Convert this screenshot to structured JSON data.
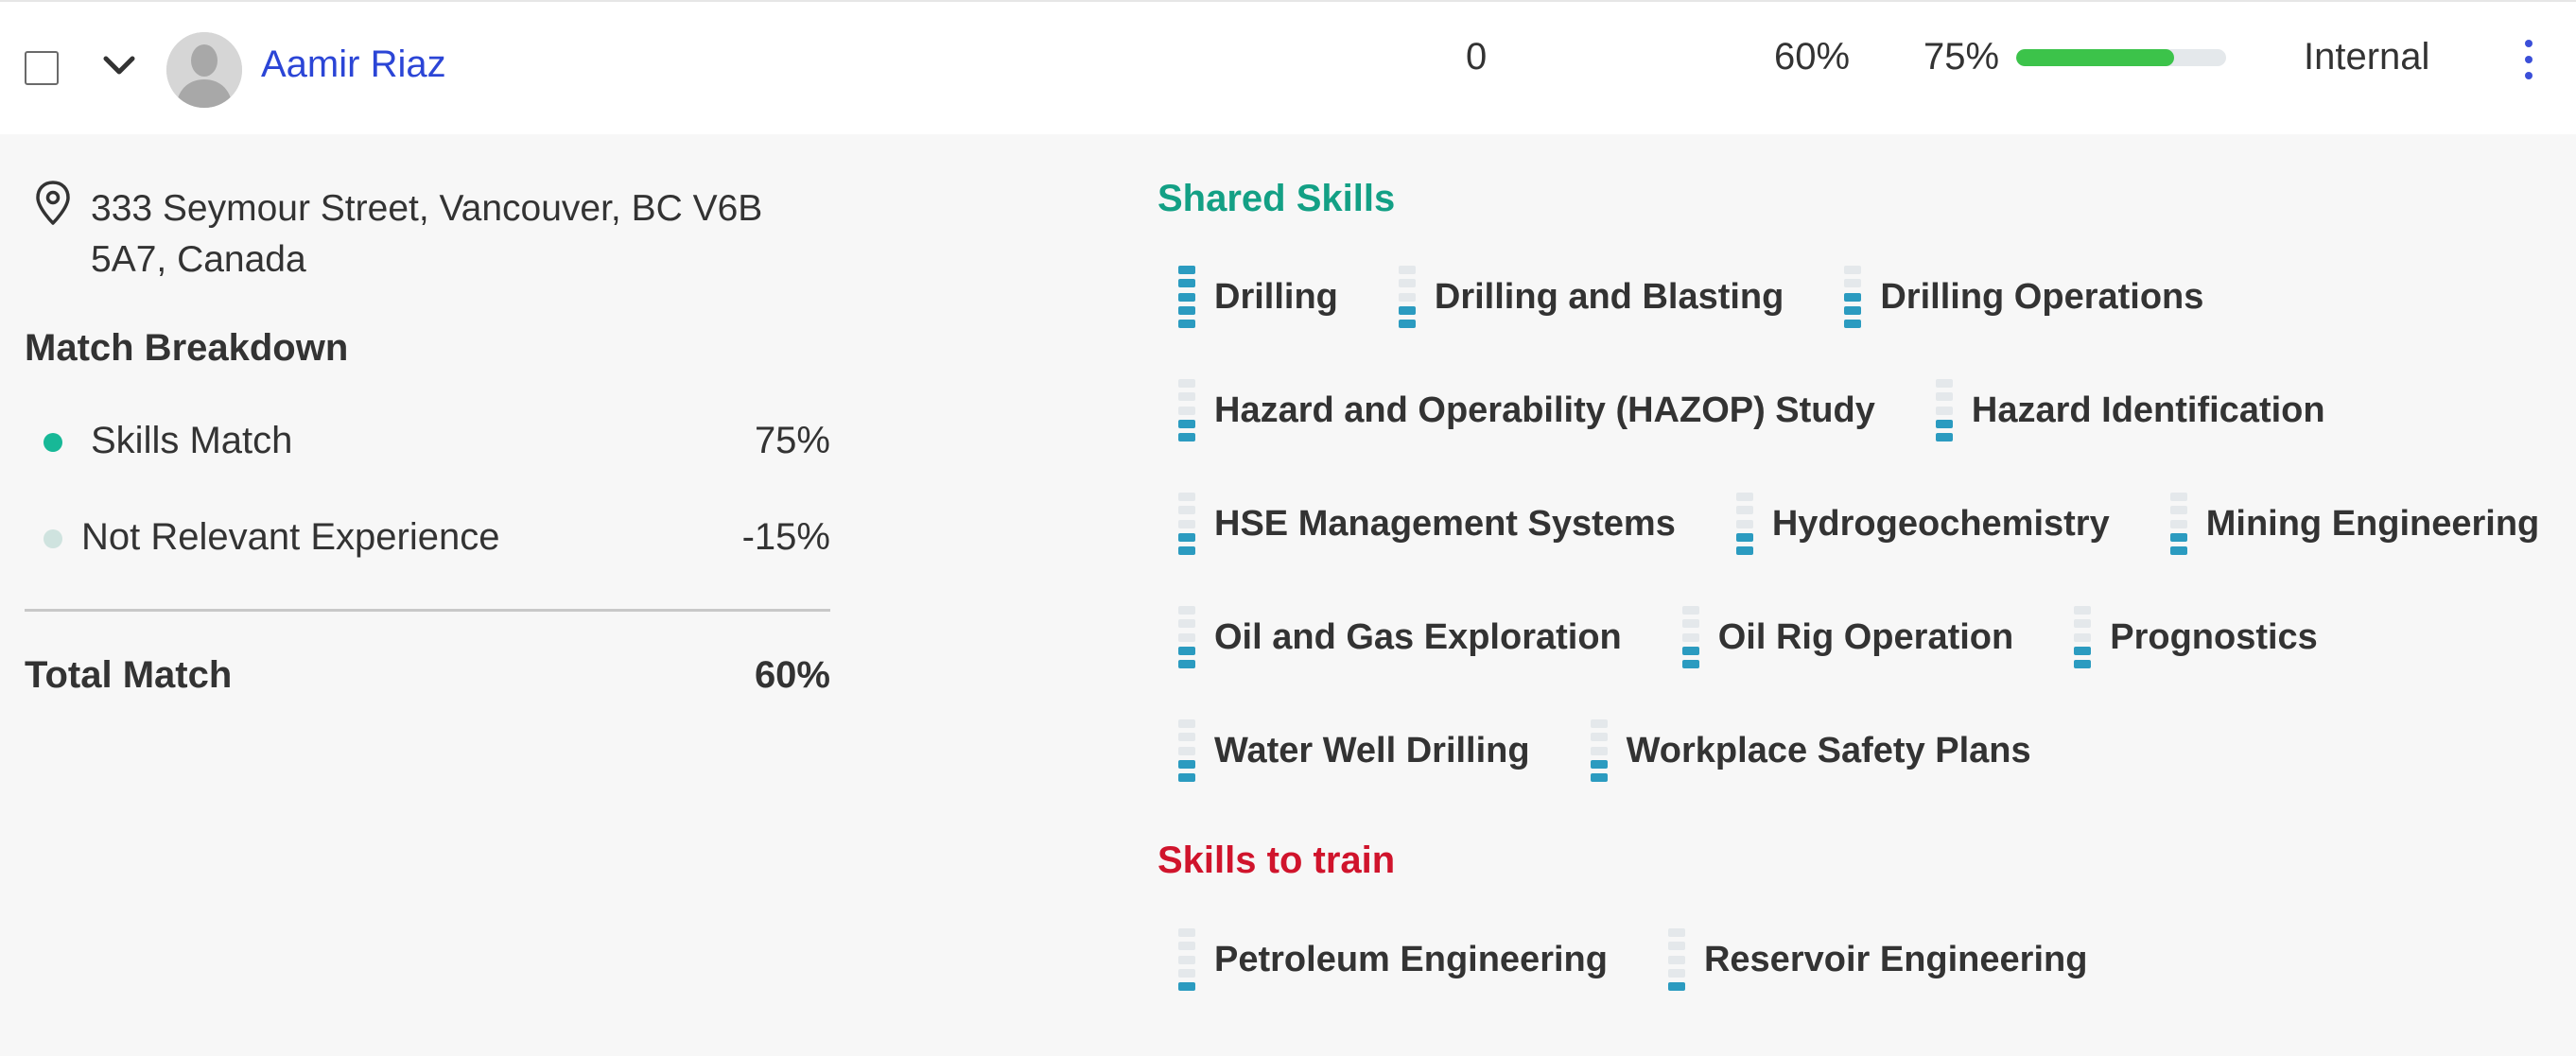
{
  "colors": {
    "link": "#2b45d6",
    "progress_fill": "#3cc34a",
    "progress_track": "#e4e8eb",
    "shared_heading": "#13a085",
    "train_heading": "#d0142c",
    "meter_on": "#2b9bc0",
    "meter_off": "#e4e8eb",
    "kebab": "#3b4fd8"
  },
  "header": {
    "name": "Aamir Riaz",
    "count": "0",
    "total_match": "60%",
    "skills_match": "75%",
    "skills_progress": 0.75,
    "type": "Internal"
  },
  "location": {
    "icon": "map-pin-icon",
    "address": "333 Seymour Street, Vancouver, BC V6B 5A7, Canada"
  },
  "breakdown": {
    "title": "Match Breakdown",
    "items": [
      {
        "label": "Skills Match",
        "value": "75%",
        "dot_color": "#17b897"
      },
      {
        "label": "Not Relevant Experience",
        "value": "-15%",
        "dot_color": "#cfe3df"
      }
    ],
    "total_label": "Total Match",
    "total_value": "60%"
  },
  "shared_skills": {
    "title": "Shared Skills",
    "rows": [
      [
        {
          "label": "Drilling",
          "level": 5
        },
        {
          "label": "Drilling and Blasting",
          "level": 2
        },
        {
          "label": "Drilling Operations",
          "level": 3
        }
      ],
      [
        {
          "label": "Hazard and Operability (HAZOP) Study",
          "level": 2
        },
        {
          "label": "Hazard Identification",
          "level": 2
        }
      ],
      [
        {
          "label": "HSE Management Systems",
          "level": 2
        },
        {
          "label": "Hydrogeochemistry",
          "level": 2
        },
        {
          "label": "Mining Engineering",
          "level": 2
        }
      ],
      [
        {
          "label": "Oil and Gas Exploration",
          "level": 2
        },
        {
          "label": "Oil Rig Operation",
          "level": 2
        },
        {
          "label": "Prognostics",
          "level": 2
        }
      ],
      [
        {
          "label": "Water Well Drilling",
          "level": 2
        },
        {
          "label": "Workplace Safety Plans",
          "level": 2
        }
      ]
    ]
  },
  "skills_to_train": {
    "title": "Skills to train",
    "rows": [
      [
        {
          "label": "Petroleum Engineering",
          "level": 1
        },
        {
          "label": "Reservoir Engineering",
          "level": 1
        }
      ]
    ]
  }
}
